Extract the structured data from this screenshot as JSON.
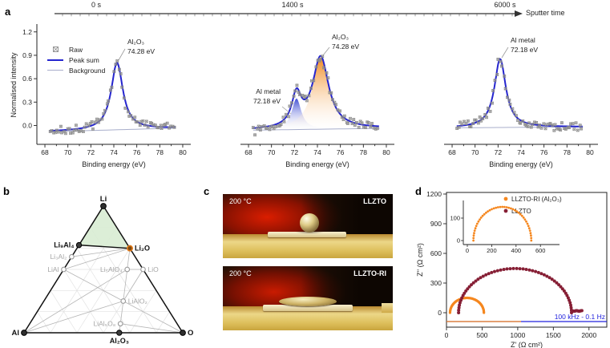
{
  "panel_labels": {
    "a": "a",
    "b": "b",
    "c": "c",
    "d": "d"
  },
  "timeline": {
    "labels": [
      "0 s",
      "1400 s",
      "6000 s"
    ],
    "axis_label": "Sputter time"
  },
  "xps_legend": {
    "raw": "Raw",
    "peak_sum": "Peak sum",
    "background": "Background"
  },
  "colors": {
    "peak_sum_blue": "#2525cf",
    "background_line": "#a8aecb",
    "raw_gray": "#8c8c8c",
    "orange": "#f5871f",
    "maroon": "#861f35",
    "blue_annotation": "#2222dd",
    "stable_green": "#d8ecd3"
  },
  "chart_data": [
    {
      "id": "xps_0s",
      "type": "scatter",
      "sputter_time": "0 s",
      "xlabel": "Binding energy (eV)",
      "ylabel": "Normalised intensity",
      "xlim": [
        67.3,
        80.7
      ],
      "ylim": [
        -0.18,
        1.28
      ],
      "xticks": [
        68,
        70,
        72,
        74,
        76,
        78,
        80
      ],
      "yticks": [
        "0.0",
        "0.3",
        "0.6",
        "0.9",
        "1.2"
      ],
      "show_yaxis": true,
      "background_line": {
        "y_at_68": -0.08,
        "slope_per_ev": 0.004
      },
      "peaks": [
        {
          "name": "Al₂O₃",
          "center_ev": 74.28,
          "amplitude": 0.86,
          "width_ev": 0.62,
          "fill": "none"
        }
      ],
      "annotations": [
        {
          "lines": [
            "Al₂O₃",
            "74.28 eV"
          ],
          "x": 151,
          "y": 31,
          "anchor": "start",
          "leader": [
            148,
            37,
            140,
            51
          ]
        }
      ],
      "noise": 0.052,
      "seed": 7
    },
    {
      "id": "xps_1400s",
      "type": "scatter",
      "sputter_time": "1400 s",
      "xlabel": "Binding energy (eV)",
      "ylabel": "",
      "xlim": [
        67.3,
        80.7
      ],
      "ylim": [
        -0.18,
        1.28
      ],
      "xticks": [
        68,
        70,
        72,
        74,
        76,
        78,
        80
      ],
      "yticks": [],
      "show_yaxis": false,
      "background_line": {
        "y_at_68": -0.06,
        "slope_per_ev": 0.002
      },
      "peaks": [
        {
          "name": "Al metal",
          "center_ev": 72.18,
          "amplitude": 0.4,
          "width_ev": 0.5,
          "fill": "blue"
        },
        {
          "name": "Al₂O₃",
          "center_ev": 74.28,
          "amplitude": 0.92,
          "width_ev": 0.85,
          "fill": "orange"
        }
      ],
      "annotations": [
        {
          "lines": [
            "Al metal",
            "72.18 eV"
          ],
          "x": 88,
          "y": 93,
          "anchor": "end",
          "leader": [
            90,
            109,
            101,
            118
          ]
        },
        {
          "lines": [
            "Al₂O₃",
            "74.28 eV"
          ],
          "x": 152,
          "y": 25,
          "anchor": "start",
          "leader": [
            149,
            35,
            141,
            45
          ]
        }
      ],
      "noise": 0.05,
      "seed": 13
    },
    {
      "id": "xps_6000s",
      "type": "scatter",
      "sputter_time": "6000 s",
      "xlabel": "Binding energy (eV)",
      "ylabel": "",
      "xlim": [
        67.3,
        80.7
      ],
      "ylim": [
        -0.18,
        1.28
      ],
      "xticks": [
        68,
        70,
        72,
        74,
        76,
        78,
        80
      ],
      "yticks": [],
      "show_yaxis": false,
      "background_line": {
        "y_at_68": -0.03,
        "slope_per_ev": 0.001
      },
      "peaks": [
        {
          "name": "Al metal",
          "center_ev": 72.18,
          "amplitude": 0.88,
          "width_ev": 0.6,
          "fill": "none"
        }
      ],
      "annotations": [
        {
          "lines": [
            "Al metal",
            "72.18 eV"
          ],
          "x": 121,
          "y": 29,
          "anchor": "start",
          "leader": [
            118,
            35,
            110,
            48
          ]
        }
      ],
      "noise": 0.05,
      "seed": 23
    },
    {
      "id": "nyquist_main",
      "type": "scatter",
      "xlabel": "Z' (Ω cm²)",
      "ylabel": "Z'' (Ω cm²)",
      "xlim": [
        0,
        2250
      ],
      "ylim": [
        0,
        1200
      ],
      "xticks": [
        0,
        500,
        1000,
        1500,
        2000
      ],
      "yticks": [
        0,
        300,
        600,
        900,
        1200
      ],
      "series": [
        {
          "name": "LLZTO-RI (Al₂O₃)",
          "color": "#f5871f",
          "semicircle": {
            "x_start": 50,
            "x_end": 525,
            "peak_height": 150
          },
          "n_points": 55
        },
        {
          "name": "LLZTO",
          "color": "#861f35",
          "semicircle": {
            "x_start": 170,
            "x_end": 1755,
            "peak_height": 447
          },
          "n_points": 55,
          "tail": {
            "x_start": 1755,
            "x_end": 1900,
            "y": 18,
            "n_points": 14
          }
        }
      ],
      "annotation": "100 kHz - 0.1 Hz"
    },
    {
      "id": "nyquist_inset",
      "type": "scatter",
      "xlim": [
        0,
        760
      ],
      "ylim": [
        0,
        170
      ],
      "xticks": [
        0,
        200,
        400,
        600
      ],
      "yticks": [
        0,
        100
      ],
      "series": [
        {
          "name": "LLZTO-RI (Al₂O₃)",
          "color": "#f5871f",
          "semicircle": {
            "x_start": 50,
            "x_end": 525,
            "peak_height": 150
          },
          "n_points": 42
        }
      ]
    }
  ],
  "panel_b": {
    "compounds": [
      {
        "label": "Li",
        "li": 1,
        "al": 0,
        "o": 0,
        "style": "vertex",
        "label_pos": "top"
      },
      {
        "label": "Al",
        "li": 0,
        "al": 1,
        "o": 0,
        "style": "vertex",
        "label_pos": "left"
      },
      {
        "label": "O",
        "li": 0,
        "al": 0,
        "o": 1,
        "style": "vertex",
        "label_pos": "right"
      },
      {
        "label": "Li₉Al₄",
        "li": 0.6923,
        "al": 0.3077,
        "o": 0,
        "style": "major",
        "label_pos": "left"
      },
      {
        "label": "Li₂O",
        "li": 0.6667,
        "al": 0,
        "o": 0.3333,
        "style": "major-orange",
        "label_pos": "right"
      },
      {
        "label": "Al₂O₃",
        "li": 0,
        "al": 0.4,
        "o": 0.6,
        "style": "major",
        "label_pos": "bottom"
      },
      {
        "label": "Li₃Al₂",
        "li": 0.6,
        "al": 0.4,
        "o": 0,
        "style": "minor",
        "label_pos": "left"
      },
      {
        "label": "LiAl",
        "li": 0.5,
        "al": 0.5,
        "o": 0,
        "style": "minor",
        "label_pos": "left"
      },
      {
        "label": "Li₅AlO₄",
        "li": 0.5,
        "al": 0.1,
        "o": 0.4,
        "style": "minor",
        "label_pos": "left"
      },
      {
        "label": "LiO",
        "li": 0.5,
        "al": 0,
        "o": 0.5,
        "style": "minor",
        "label_pos": "right"
      },
      {
        "label": "LiAlO₂",
        "li": 0.25,
        "al": 0.25,
        "o": 0.5,
        "style": "minor",
        "label_pos": "right"
      },
      {
        "label": "LiAl₅O₈",
        "li": 0.0714,
        "al": 0.3571,
        "o": 0.5715,
        "style": "minor",
        "label_pos": "left"
      }
    ],
    "tie_lines": [
      [
        "Li₃Al₂",
        "Li₂O"
      ],
      [
        "LiAl",
        "Li₂O"
      ],
      [
        "LiAl",
        "LiAlO₂"
      ],
      [
        "Al",
        "LiAlO₂"
      ],
      [
        "Al",
        "Li₅AlO₄"
      ],
      [
        "Li₂O",
        "Li₅AlO₄"
      ],
      [
        "Li₅AlO₄",
        "LiO"
      ],
      [
        "Li₅AlO₄",
        "LiAlO₂"
      ],
      [
        "LiAlO₂",
        "LiO"
      ],
      [
        "LiAlO₂",
        "Al₂O₃"
      ],
      [
        "LiAlO₂",
        "LiAl₅O₈"
      ],
      [
        "LiAlO₂",
        "O"
      ],
      [
        "LiAl₅O₈",
        "Al₂O₃"
      ],
      [
        "LiAl₅O₈",
        "O"
      ]
    ],
    "stability_triangle": [
      "Li",
      "Li₉Al₄",
      "Li₂O"
    ]
  },
  "panel_c": {
    "photos": [
      {
        "temperature": "200 °C",
        "sample": "LLZTO"
      },
      {
        "temperature": "200 °C",
        "sample": "LLZTO-RI"
      }
    ]
  },
  "panel_d": {
    "legend": [
      {
        "label": "LLZTO-RI (Al₂O₃)",
        "color": "#f5871f"
      },
      {
        "label": "LLZTO",
        "color": "#861f35"
      }
    ],
    "frequency_range": "100 kHz - 0.1 Hz",
    "xlabel": "Z' (Ω cm²)",
    "ylabel": "Z'' (Ω cm²)"
  }
}
